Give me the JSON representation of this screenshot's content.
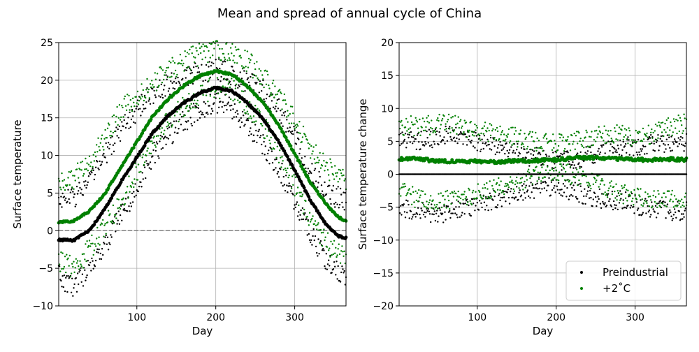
{
  "figure": {
    "suptitle": "Mean and spread of annual cycle of China"
  },
  "colors": {
    "preindustrial": "#000000",
    "warming": "#008000",
    "zero_line": "#808080",
    "grid": "#b0b0b0"
  },
  "chart_data": [
    {
      "type": "scatter",
      "title": "",
      "xlabel": "Day",
      "ylabel": "Surface temperature",
      "xlim": [
        1,
        365
      ],
      "ylim": [
        -10,
        25
      ],
      "xticks": [
        100,
        200,
        300
      ],
      "yticks": [
        -10,
        -5,
        0,
        5,
        10,
        15,
        20,
        25
      ],
      "grid": true,
      "legend": "none",
      "reference_line": {
        "y": 0,
        "style": "dashed"
      },
      "series": [
        {
          "role": "mean",
          "color_key": "preindustrial",
          "x": [
            1,
            20,
            40,
            50,
            60,
            80,
            100,
            120,
            140,
            160,
            180,
            200,
            220,
            240,
            260,
            280,
            300,
            320,
            340,
            355,
            365
          ],
          "y": [
            -1.2,
            -1.3,
            0.0,
            1.5,
            3.0,
            6.5,
            9.8,
            13.0,
            15.3,
            17.0,
            18.3,
            19.0,
            18.6,
            17.0,
            14.8,
            11.8,
            8.0,
            4.0,
            0.8,
            -0.7,
            -1.0
          ]
        },
        {
          "role": "mean",
          "color_key": "warming",
          "x": [
            1,
            20,
            40,
            50,
            60,
            80,
            100,
            120,
            140,
            160,
            180,
            200,
            220,
            240,
            260,
            280,
            300,
            320,
            340,
            355,
            365
          ],
          "y": [
            1.1,
            1.3,
            2.6,
            3.8,
            5.0,
            8.5,
            11.8,
            15.2,
            17.5,
            19.3,
            20.6,
            21.2,
            20.8,
            19.2,
            17.0,
            14.0,
            10.2,
            6.4,
            3.5,
            1.8,
            1.3
          ]
        },
        {
          "role": "spread",
          "color_key": "preindustrial",
          "upper": {
            "x": [
              1,
              20,
              40,
              60,
              80,
              100,
              120,
              140,
              160,
              180,
              200,
              220,
              240,
              260,
              280,
              300,
              320,
              340,
              365
            ],
            "y": [
              4.0,
              4.5,
              6.5,
              10.0,
              13.5,
              16.0,
              18.3,
              19.5,
              20.3,
              21.0,
              21.5,
              20.8,
              19.8,
              18.5,
              16.0,
              12.5,
              8.0,
              5.0,
              4.0
            ]
          },
          "lower": {
            "x": [
              1,
              20,
              40,
              60,
              80,
              100,
              120,
              140,
              160,
              180,
              200,
              220,
              240,
              260,
              280,
              300,
              320,
              340,
              365
            ],
            "y": [
              -6.0,
              -7.5,
              -5.0,
              -2.0,
              2.0,
              5.5,
              10.0,
              12.5,
              14.5,
              16.0,
              17.2,
              16.5,
              14.0,
              11.5,
              8.5,
              4.0,
              -0.5,
              -4.0,
              -6.5
            ]
          }
        },
        {
          "role": "spread",
          "color_key": "warming",
          "upper": {
            "x": [
              1,
              20,
              40,
              60,
              80,
              100,
              120,
              140,
              160,
              180,
              200,
              220,
              240,
              260,
              280,
              300,
              320,
              340,
              365
            ],
            "y": [
              6.5,
              7.0,
              9.0,
              12.5,
              16.0,
              17.5,
              19.5,
              21.3,
              22.5,
              23.5,
              24.0,
              23.8,
              22.5,
              20.5,
              18.0,
              14.5,
              11.0,
              8.5,
              6.5
            ]
          },
          "lower": {
            "x": [
              1,
              20,
              40,
              60,
              80,
              100,
              120,
              140,
              160,
              180,
              200,
              220,
              240,
              260,
              280,
              300,
              320,
              340,
              365
            ],
            "y": [
              -4.0,
              -5.0,
              -2.5,
              0.5,
              4.0,
              8.0,
              12.0,
              14.5,
              16.5,
              18.3,
              19.0,
              18.8,
              16.5,
              14.0,
              10.5,
              6.0,
              1.5,
              -1.5,
              -4.0
            ]
          }
        }
      ]
    },
    {
      "type": "scatter",
      "title": "",
      "xlabel": "Day",
      "ylabel": "Surface temperature change",
      "xlim": [
        1,
        365
      ],
      "ylim": [
        -20,
        20
      ],
      "xticks": [
        100,
        200,
        300
      ],
      "yticks": [
        -20,
        -15,
        -10,
        -5,
        0,
        5,
        10,
        15,
        20
      ],
      "grid": true,
      "legend": "lower-right",
      "legend_entries": [
        "Preindustrial",
        "+2˚C"
      ],
      "series": [
        {
          "role": "mean",
          "name": "Preindustrial",
          "color_key": "preindustrial",
          "x": [
            1,
            365
          ],
          "y": [
            0,
            0
          ]
        },
        {
          "role": "mean",
          "name": "+2˚C",
          "color_key": "warming",
          "x": [
            1,
            20,
            40,
            60,
            80,
            100,
            120,
            140,
            160,
            180,
            200,
            220,
            240,
            260,
            280,
            300,
            320,
            340,
            365
          ],
          "y": [
            2.3,
            2.5,
            2.1,
            2.0,
            1.9,
            2.0,
            1.8,
            2.0,
            2.0,
            2.1,
            2.2,
            2.4,
            2.5,
            2.5,
            2.3,
            2.2,
            2.2,
            2.3,
            2.2
          ]
        },
        {
          "role": "spread",
          "color_key": "preindustrial",
          "upper": {
            "x": [
              1,
              20,
              40,
              60,
              80,
              100,
              120,
              140,
              160,
              180,
              200,
              220,
              240,
              260,
              280,
              300,
              320,
              340,
              365
            ],
            "y": [
              5.5,
              5.0,
              5.5,
              5.8,
              5.5,
              5.0,
              4.3,
              3.5,
              2.8,
              2.5,
              2.0,
              2.3,
              2.8,
              3.5,
              4.0,
              4.3,
              4.5,
              4.8,
              4.8
            ]
          },
          "lower": {
            "x": [
              1,
              20,
              40,
              60,
              80,
              100,
              120,
              140,
              160,
              180,
              200,
              220,
              240,
              260,
              280,
              300,
              320,
              340,
              365
            ],
            "y": [
              -5.0,
              -5.5,
              -5.8,
              -6.0,
              -5.5,
              -4.8,
              -4.0,
              -3.3,
              -2.5,
              -2.2,
              -1.8,
              -2.5,
              -3.2,
              -3.8,
              -4.0,
              -4.5,
              -5.5,
              -5.5,
              -5.5
            ]
          }
        },
        {
          "role": "spread",
          "color_key": "warming",
          "upper": {
            "x": [
              1,
              20,
              40,
              60,
              80,
              100,
              120,
              140,
              160,
              180,
              200,
              220,
              240,
              260,
              280,
              300,
              320,
              340,
              365
            ],
            "y": [
              7.5,
              7.3,
              7.5,
              8.0,
              7.0,
              6.5,
              6.3,
              5.8,
              5.3,
              5.0,
              4.8,
              5.0,
              5.5,
              6.0,
              6.0,
              5.8,
              6.0,
              7.0,
              7.8
            ]
          },
          "lower": {
            "x": [
              1,
              20,
              40,
              60,
              80,
              100,
              120,
              140,
              160,
              180,
              200,
              220,
              240,
              260,
              280,
              300,
              320,
              340,
              365
            ],
            "y": [
              -2.5,
              -3.5,
              -4.5,
              -4.0,
              -3.5,
              -3.0,
              -2.0,
              -1.5,
              -0.8,
              0.0,
              0.5,
              0.0,
              -0.8,
              -1.8,
              -2.8,
              -3.5,
              -4.0,
              -4.0,
              -3.5
            ]
          }
        }
      ]
    }
  ]
}
